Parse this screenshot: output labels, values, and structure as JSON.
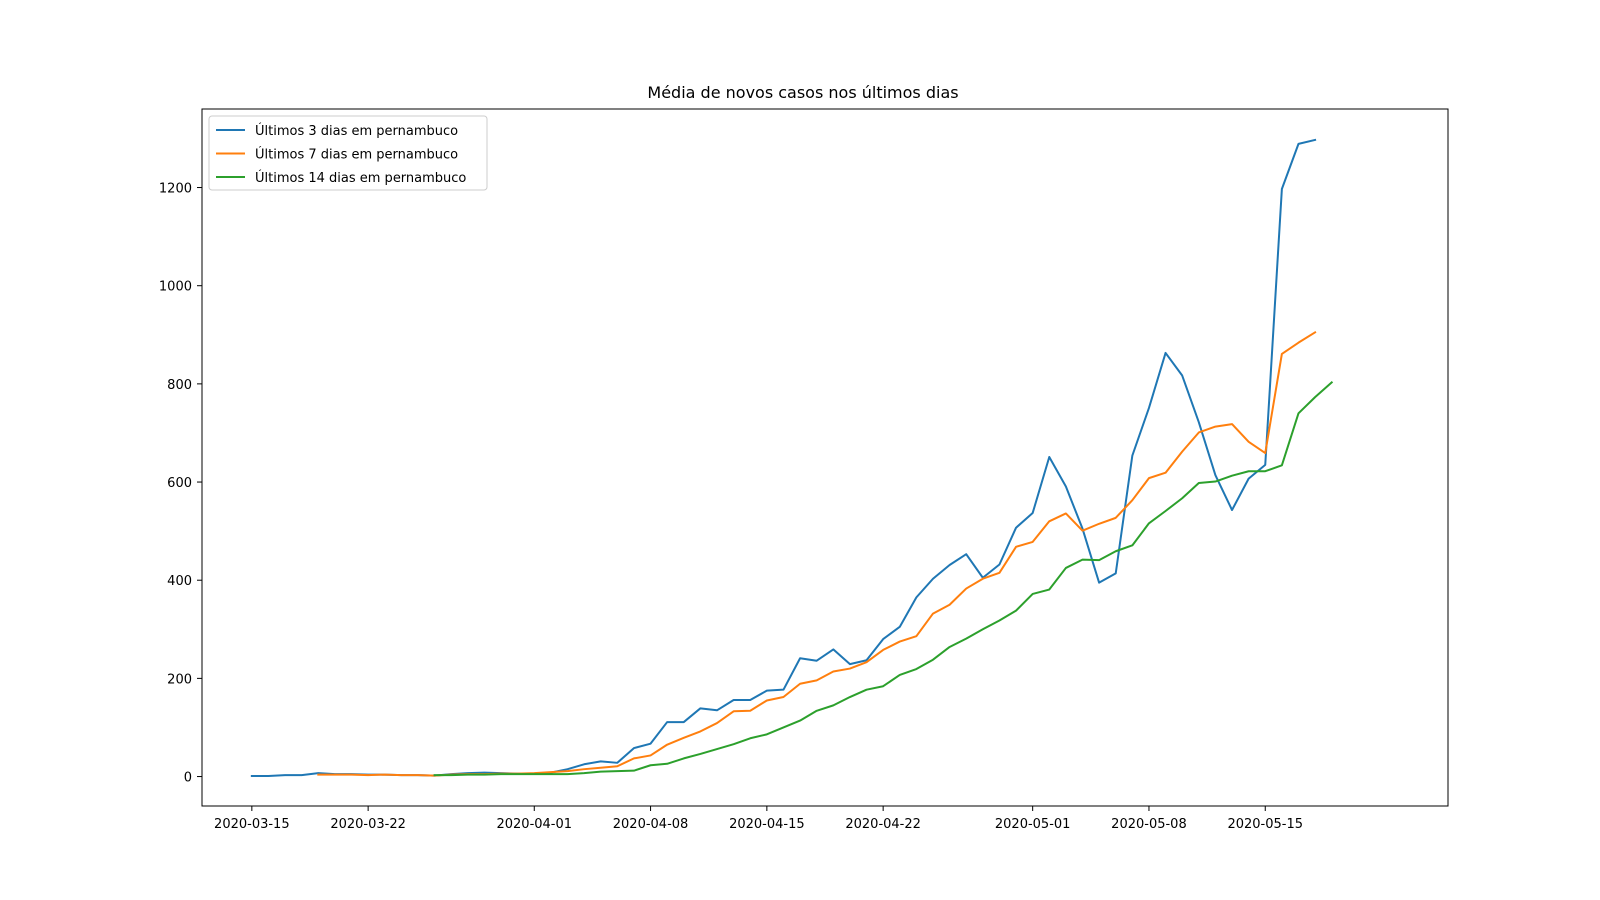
{
  "chart_data": {
    "type": "line",
    "title": "Média de novos casos nos últimos dias",
    "xlabel": "",
    "ylabel": "",
    "grid": false,
    "legend_position": "top-left",
    "x_start": "2020-03-15",
    "x_end": "2020-05-20",
    "xlim": [
      "2020-03-12",
      "2020-05-26"
    ],
    "ylim": [
      -60,
      1360
    ],
    "x_ticks": [
      "2020-03-15",
      "2020-03-22",
      "2020-04-01",
      "2020-04-08",
      "2020-04-15",
      "2020-04-22",
      "2020-05-01",
      "2020-05-08",
      "2020-05-15"
    ],
    "y_ticks": [
      0,
      200,
      400,
      600,
      800,
      1000,
      1200
    ],
    "series": [
      {
        "name": "Últimos 3 dias em pernambuco",
        "color": "#1f77b4",
        "start": "2020-03-15",
        "values": [
          1,
          1,
          3,
          3,
          7,
          5,
          5,
          4,
          4,
          3,
          3,
          2,
          5,
          7,
          8,
          7,
          6,
          6,
          8,
          15,
          25,
          31,
          28,
          58,
          67,
          111,
          111,
          139,
          135,
          156,
          156,
          175,
          177,
          241,
          236,
          259,
          229,
          237,
          280,
          305,
          365,
          403,
          431,
          453,
          405,
          432,
          507,
          537,
          651,
          591,
          505,
          395,
          414,
          654,
          751,
          863,
          817,
          722,
          614,
          543,
          607,
          635,
          1197,
          1289,
          1297
        ]
      },
      {
        "name": "Últimos 7 dias em pernambuco",
        "color": "#ff7f0e",
        "start": "2020-03-19",
        "values": [
          4,
          4,
          4,
          3,
          4,
          3,
          3,
          2,
          4,
          5,
          5,
          6,
          6,
          7,
          9,
          11,
          15,
          18,
          21,
          37,
          43,
          65,
          79,
          92,
          109,
          133,
          134,
          155,
          162,
          189,
          196,
          214,
          220,
          233,
          258,
          275,
          286,
          332,
          350,
          383,
          403,
          415,
          468,
          478,
          520,
          536,
          501,
          515,
          527,
          563,
          608,
          619,
          662,
          701,
          713,
          718,
          682,
          659,
          861,
          884,
          905
        ]
      },
      {
        "name": "Últimos 14 dias em pernambuco",
        "color": "#2ca02c",
        "start": "2020-03-26",
        "values": [
          3,
          3,
          4,
          4,
          5,
          5,
          5,
          5,
          5,
          7,
          10,
          11,
          12,
          23,
          26,
          37,
          46,
          56,
          66,
          78,
          86,
          100,
          114,
          134,
          145,
          162,
          177,
          184,
          207,
          219,
          238,
          264,
          281,
          300,
          318,
          338,
          372,
          381,
          425,
          442,
          441,
          459,
          471,
          516,
          541,
          567,
          598,
          601,
          613,
          622,
          622,
          634,
          740,
          773,
          803
        ]
      }
    ]
  }
}
